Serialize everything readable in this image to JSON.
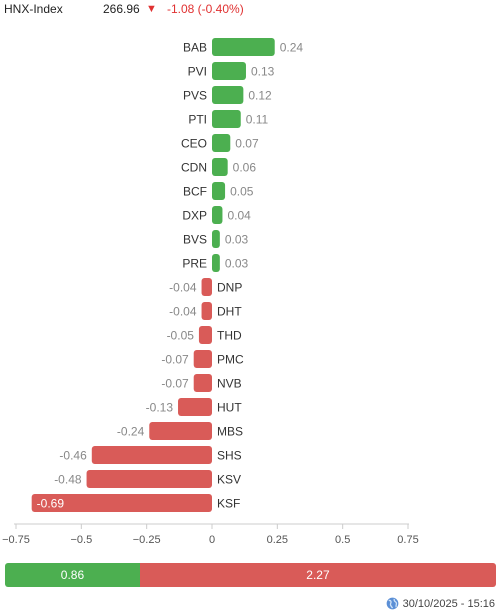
{
  "header": {
    "index_name": "HNX-Index",
    "index_value": "266.96",
    "arrow": "▼",
    "change": "-1.08 (-0.40%)",
    "down_color": "#e03131"
  },
  "colors": {
    "positive": "#4caf50",
    "negative": "#d95b58",
    "axis": "#999999",
    "label": "#333333",
    "value_label": "#888888"
  },
  "chart_data": {
    "type": "bar",
    "orientation": "horizontal",
    "categories": [
      "BAB",
      "PVI",
      "PVS",
      "PTI",
      "CEO",
      "CDN",
      "BCF",
      "DXP",
      "BVS",
      "PRE",
      "DNP",
      "DHT",
      "THD",
      "PMC",
      "NVB",
      "HUT",
      "MBS",
      "SHS",
      "KSV",
      "KSF"
    ],
    "values": [
      0.24,
      0.13,
      0.12,
      0.11,
      0.07,
      0.06,
      0.05,
      0.04,
      0.03,
      0.03,
      -0.04,
      -0.04,
      -0.05,
      -0.07,
      -0.07,
      -0.13,
      -0.24,
      -0.46,
      -0.48,
      -0.69
    ],
    "value_labels": [
      "0.24",
      "0.13",
      "0.12",
      "0.11",
      "0.07",
      "0.06",
      "0.05",
      "0.04",
      "0.03",
      "0.03",
      "-0.04",
      "-0.04",
      "-0.05",
      "-0.07",
      "-0.07",
      "-0.13",
      "-0.24",
      "-0.46",
      "-0.48",
      "-0.69"
    ],
    "xlim": [
      -0.75,
      0.75
    ],
    "ticks": [
      -0.75,
      -0.5,
      -0.25,
      0,
      0.25,
      0.5,
      0.75
    ],
    "tick_labels": [
      "−0.75",
      "−0.5",
      "−0.25",
      "0",
      "0.25",
      "0.5",
      "0.75"
    ],
    "grid": false
  },
  "summary_bar": {
    "up_value": 0.86,
    "up_label": "0.86",
    "down_value": 2.27,
    "down_label": "2.27"
  },
  "footer": {
    "timestamp": "30/10/2025 - 15:16",
    "icon": "globe-icon"
  }
}
